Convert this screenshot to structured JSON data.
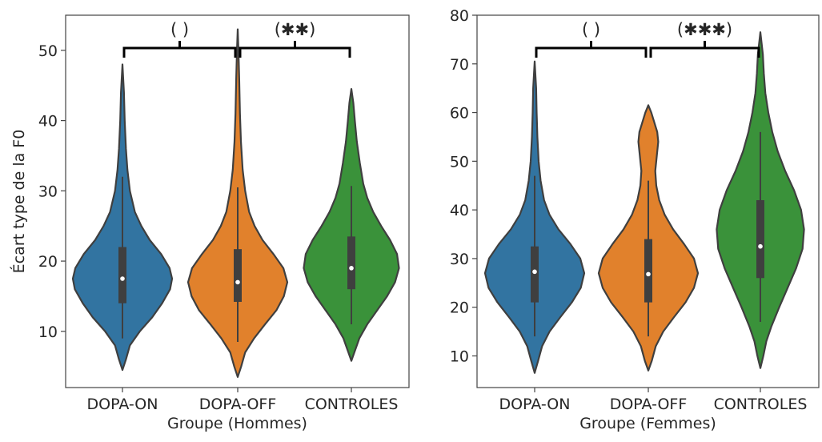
{
  "chart_data": [
    {
      "type": "violin",
      "xlabel": "Groupe (Hommes)",
      "ylabel": "Écart type de la F0",
      "ylim": [
        2,
        55
      ],
      "yticks": [
        10,
        20,
        30,
        40,
        50
      ],
      "categories": [
        "DOPA-ON",
        "DOPA-OFF",
        "CONTROLES"
      ],
      "colors": [
        "#3274a1",
        "#e1812c",
        "#3a923a"
      ],
      "series": [
        {
          "min": 4.5,
          "max": 48,
          "q1": 14,
          "median": 17.5,
          "q3": 22,
          "whisker_low": 9,
          "whisker_high": 32,
          "density": [
            [
              4.5,
              0.0
            ],
            [
              6,
              0.07
            ],
            [
              8,
              0.15
            ],
            [
              10,
              0.35
            ],
            [
              12,
              0.6
            ],
            [
              14,
              0.8
            ],
            [
              16,
              0.96
            ],
            [
              17.5,
              1.0
            ],
            [
              19,
              0.95
            ],
            [
              21,
              0.78
            ],
            [
              23,
              0.55
            ],
            [
              25,
              0.38
            ],
            [
              27,
              0.25
            ],
            [
              30,
              0.15
            ],
            [
              33,
              0.1
            ],
            [
              36,
              0.07
            ],
            [
              40,
              0.045
            ],
            [
              44,
              0.03
            ],
            [
              48,
              0.0
            ]
          ]
        },
        {
          "min": 3.5,
          "max": 53,
          "q1": 14.2,
          "median": 17,
          "q3": 21.7,
          "whisker_low": 8.5,
          "whisker_high": 30.5,
          "density": [
            [
              3.5,
              0.0
            ],
            [
              5,
              0.07
            ],
            [
              7,
              0.15
            ],
            [
              9,
              0.33
            ],
            [
              11,
              0.55
            ],
            [
              13,
              0.78
            ],
            [
              15,
              0.93
            ],
            [
              17,
              1.0
            ],
            [
              19,
              0.92
            ],
            [
              21,
              0.72
            ],
            [
              23,
              0.5
            ],
            [
              25,
              0.34
            ],
            [
              27,
              0.23
            ],
            [
              30,
              0.15
            ],
            [
              33,
              0.1
            ],
            [
              37,
              0.065
            ],
            [
              41,
              0.045
            ],
            [
              46,
              0.03
            ],
            [
              50,
              0.015
            ],
            [
              53,
              0.0
            ]
          ]
        },
        {
          "min": 5.8,
          "max": 44.5,
          "q1": 16,
          "median": 19,
          "q3": 23.5,
          "whisker_low": 11,
          "whisker_high": 30.7,
          "density": [
            [
              5.8,
              0.0
            ],
            [
              7,
              0.06
            ],
            [
              9,
              0.16
            ],
            [
              11,
              0.32
            ],
            [
              13,
              0.52
            ],
            [
              15,
              0.72
            ],
            [
              17,
              0.88
            ],
            [
              19,
              0.96
            ],
            [
              21,
              0.92
            ],
            [
              23,
              0.78
            ],
            [
              25,
              0.6
            ],
            [
              27,
              0.44
            ],
            [
              29,
              0.32
            ],
            [
              31,
              0.24
            ],
            [
              34,
              0.17
            ],
            [
              37,
              0.11
            ],
            [
              40,
              0.07
            ],
            [
              42.5,
              0.04
            ],
            [
              44.5,
              0.0
            ]
          ]
        }
      ],
      "annotations": [
        {
          "from": 0,
          "to": 1,
          "label": "( )"
        },
        {
          "from": 1,
          "to": 2,
          "label": "(✱✱)"
        }
      ]
    },
    {
      "type": "violin",
      "xlabel": "Groupe (Femmes)",
      "ylabel": "",
      "ylim": [
        3.5,
        80
      ],
      "yticks": [
        10,
        20,
        30,
        40,
        50,
        60,
        70,
        80
      ],
      "categories": [
        "DOPA-ON",
        "DOPA-OFF",
        "CONTROLES"
      ],
      "colors": [
        "#3274a1",
        "#e1812c",
        "#3a923a"
      ],
      "series": [
        {
          "min": 6.5,
          "max": 70.5,
          "q1": 21,
          "median": 27.3,
          "q3": 32.5,
          "whisker_low": 14,
          "whisker_high": 47,
          "density": [
            [
              6.5,
              0.0
            ],
            [
              9,
              0.07
            ],
            [
              12,
              0.15
            ],
            [
              15,
              0.3
            ],
            [
              18,
              0.52
            ],
            [
              21,
              0.75
            ],
            [
              24,
              0.93
            ],
            [
              27,
              1.0
            ],
            [
              30,
              0.92
            ],
            [
              33,
              0.72
            ],
            [
              36,
              0.48
            ],
            [
              39,
              0.3
            ],
            [
              42,
              0.19
            ],
            [
              46,
              0.12
            ],
            [
              50,
              0.08
            ],
            [
              55,
              0.055
            ],
            [
              60,
              0.04
            ],
            [
              65,
              0.03
            ],
            [
              70.5,
              0.0
            ]
          ]
        },
        {
          "min": 7,
          "max": 61.5,
          "q1": 21,
          "median": 26.8,
          "q3": 34,
          "whisker_low": 14,
          "whisker_high": 46,
          "density": [
            [
              7,
              0.0
            ],
            [
              9,
              0.07
            ],
            [
              12,
              0.15
            ],
            [
              15,
              0.3
            ],
            [
              18,
              0.52
            ],
            [
              21,
              0.75
            ],
            [
              24,
              0.92
            ],
            [
              27,
              1.0
            ],
            [
              30,
              0.92
            ],
            [
              33,
              0.72
            ],
            [
              36,
              0.5
            ],
            [
              39,
              0.33
            ],
            [
              42,
              0.22
            ],
            [
              45,
              0.16
            ],
            [
              48,
              0.14
            ],
            [
              51,
              0.17
            ],
            [
              54,
              0.2
            ],
            [
              56,
              0.18
            ],
            [
              58,
              0.12
            ],
            [
              60,
              0.06
            ],
            [
              61.5,
              0.0
            ]
          ]
        },
        {
          "min": 7.5,
          "max": 76.5,
          "q1": 26,
          "median": 32.5,
          "q3": 42,
          "whisker_low": 17,
          "whisker_high": 56,
          "density": [
            [
              7.5,
              0.0
            ],
            [
              10,
              0.06
            ],
            [
              13,
              0.12
            ],
            [
              16,
              0.22
            ],
            [
              20,
              0.38
            ],
            [
              24,
              0.55
            ],
            [
              28,
              0.72
            ],
            [
              32,
              0.85
            ],
            [
              36,
              0.88
            ],
            [
              40,
              0.82
            ],
            [
              44,
              0.68
            ],
            [
              48,
              0.5
            ],
            [
              52,
              0.35
            ],
            [
              56,
              0.24
            ],
            [
              60,
              0.16
            ],
            [
              64,
              0.1
            ],
            [
              68,
              0.07
            ],
            [
              72,
              0.05
            ],
            [
              76.5,
              0.0
            ]
          ]
        }
      ],
      "annotations": [
        {
          "from": 0,
          "to": 1,
          "label": "( )"
        },
        {
          "from": 1,
          "to": 2,
          "label": "(✱✱✱)"
        }
      ]
    }
  ]
}
